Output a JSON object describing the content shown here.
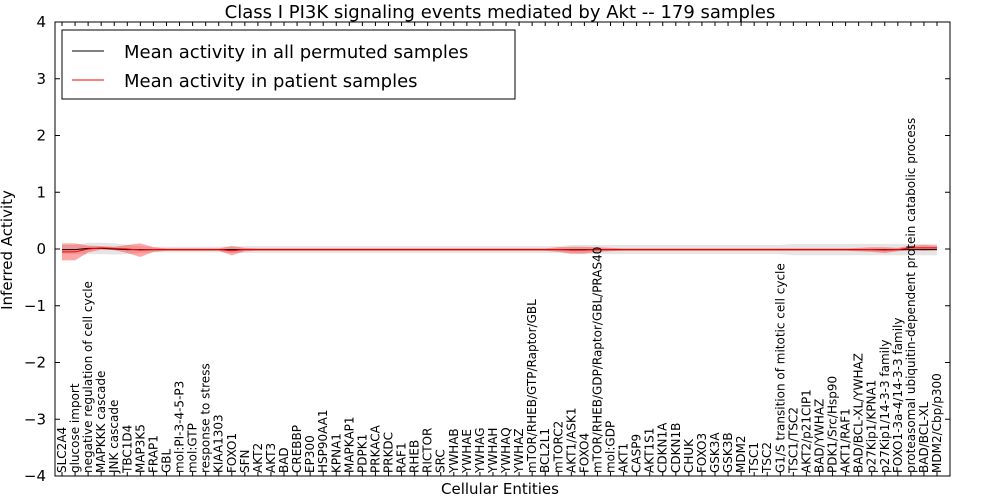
{
  "chart_data": {
    "type": "line",
    "title": "Class I PI3K signaling events mediated by Akt -- 179 samples",
    "xlabel": "Cellular Entities",
    "ylabel": "Inferred Activity",
    "ylim": [
      -4,
      4
    ],
    "yticks": [
      4,
      3,
      2,
      1,
      0,
      -1,
      -2,
      -3,
      -4
    ],
    "ytick_labels": [
      "4",
      "3",
      "2",
      "1",
      "0",
      "−1",
      "−2",
      "−3",
      "−4"
    ],
    "legend_location": "top-left",
    "categories": [
      "SLC2A4",
      "glucose import",
      "negative regulation of cell cycle",
      "MAPKKK cascade",
      "JNK cascade",
      "TBC1D4",
      "MAP3K5",
      "FRAP1",
      "GBL",
      "mol:PI-3-4-5-P3",
      "mol:GTP",
      "response to stress",
      "KIAA1303",
      "FOXO1",
      "SFN",
      "AKT2",
      "AKT3",
      "BAD",
      "CREBBP",
      "EP300",
      "HSP90AA1",
      "KPNA1",
      "MAPKAP1",
      "PDPK1",
      "PRKACA",
      "PRKDC",
      "RAF1",
      "RHEB",
      "RICTOR",
      "SRC",
      "YWHAB",
      "YWHAE",
      "YWHAG",
      "YWHAH",
      "YWHAQ",
      "YWHAZ",
      "mTOR/RHEB/GTP/Raptor/GBL",
      "BCL2L1",
      "mTORC2",
      "AKT1/ASK1",
      "FOXO4",
      "mTOR/RHEB/GDP/Raptor/GBL/PRAS40",
      "mol:GDP",
      "AKT1",
      "CASP9",
      "AKT1S1",
      "CDKN1A",
      "CDKN1B",
      "CHUK",
      "FOXO3",
      "GSK3A",
      "GSK3B",
      "MDM2",
      "TSC1",
      "TSC2",
      "G1/S transition of mitotic cell cycle",
      "TSC1/TSC2",
      "AKT2/p21CIP1",
      "BAD/YWHAZ",
      "PDK1/Src/Hsp90",
      "AKT1/RAF1",
      "BAD/BCL-XL/YWHAZ",
      "p27Kip1/KPNA1",
      "p27Kip1/14-3-3 family",
      "FOXO1-3a-4/14-3-3 family",
      "proteasomal ubiquitin-dependent protein catabolic process",
      "BAD/BCL-XL",
      "MDM2/Cbp/p300"
    ],
    "series": [
      {
        "name": "Mean activity in all permuted samples",
        "color": "#000000",
        "values": [
          -0.01,
          -0.01,
          0.01,
          0.01,
          0.0,
          -0.01,
          -0.01,
          -0.01,
          -0.01,
          -0.01,
          -0.01,
          -0.01,
          -0.01,
          -0.01,
          -0.01,
          -0.01,
          -0.01,
          -0.01,
          -0.01,
          -0.01,
          -0.01,
          -0.01,
          -0.01,
          -0.01,
          -0.01,
          -0.01,
          -0.01,
          -0.01,
          -0.01,
          -0.01,
          -0.01,
          -0.01,
          -0.01,
          -0.01,
          -0.01,
          -0.01,
          -0.01,
          -0.01,
          -0.01,
          -0.01,
          -0.01,
          -0.01,
          -0.01,
          -0.01,
          -0.01,
          -0.01,
          -0.01,
          -0.01,
          -0.01,
          -0.01,
          -0.01,
          -0.01,
          -0.01,
          -0.01,
          -0.01,
          -0.01,
          -0.01,
          -0.01,
          -0.01,
          -0.01,
          -0.01,
          -0.01,
          -0.01,
          -0.01,
          -0.01,
          -0.01,
          -0.01,
          -0.01
        ],
        "band": [
          0.08,
          0.08,
          0.1,
          0.1,
          0.1,
          0.08,
          0.06,
          0.05,
          0.05,
          0.05,
          0.05,
          0.05,
          0.05,
          0.06,
          0.06,
          0.06,
          0.06,
          0.06,
          0.06,
          0.06,
          0.06,
          0.06,
          0.06,
          0.06,
          0.06,
          0.06,
          0.06,
          0.06,
          0.06,
          0.06,
          0.06,
          0.06,
          0.06,
          0.06,
          0.06,
          0.06,
          0.06,
          0.06,
          0.06,
          0.08,
          0.08,
          0.08,
          0.08,
          0.08,
          0.08,
          0.08,
          0.08,
          0.08,
          0.08,
          0.08,
          0.08,
          0.08,
          0.08,
          0.08,
          0.08,
          0.08,
          0.1,
          0.1,
          0.1,
          0.1,
          0.1,
          0.1,
          0.1,
          0.1,
          0.1,
          0.1,
          0.1,
          0.1
        ]
      },
      {
        "name": "Mean activity in patient samples",
        "color": "#ff0000",
        "values": [
          -0.05,
          -0.05,
          0.0,
          0.02,
          0.01,
          0.0,
          -0.02,
          -0.01,
          -0.01,
          -0.01,
          -0.01,
          -0.01,
          -0.01,
          -0.03,
          -0.01,
          -0.01,
          -0.01,
          -0.01,
          -0.01,
          -0.01,
          -0.01,
          -0.01,
          -0.01,
          -0.01,
          -0.01,
          -0.01,
          -0.01,
          -0.01,
          -0.01,
          -0.01,
          -0.01,
          -0.01,
          -0.01,
          -0.01,
          -0.01,
          -0.01,
          -0.01,
          -0.01,
          -0.01,
          -0.02,
          -0.02,
          -0.01,
          -0.01,
          -0.01,
          -0.01,
          -0.01,
          -0.01,
          -0.01,
          -0.01,
          -0.01,
          -0.01,
          -0.01,
          -0.01,
          -0.01,
          -0.01,
          -0.01,
          -0.01,
          -0.01,
          -0.01,
          -0.01,
          -0.01,
          -0.01,
          -0.01,
          -0.02,
          -0.01,
          0.02,
          0.02,
          0.02
        ],
        "band": [
          0.15,
          0.15,
          0.06,
          0.03,
          0.03,
          0.07,
          0.12,
          0.04,
          0.02,
          0.02,
          0.02,
          0.02,
          0.02,
          0.08,
          0.03,
          0.02,
          0.02,
          0.02,
          0.02,
          0.02,
          0.02,
          0.02,
          0.02,
          0.02,
          0.02,
          0.02,
          0.02,
          0.02,
          0.02,
          0.02,
          0.02,
          0.02,
          0.02,
          0.02,
          0.02,
          0.02,
          0.02,
          0.02,
          0.04,
          0.06,
          0.06,
          0.04,
          0.03,
          0.02,
          0.02,
          0.02,
          0.02,
          0.02,
          0.02,
          0.02,
          0.02,
          0.02,
          0.02,
          0.02,
          0.02,
          0.02,
          0.02,
          0.02,
          0.02,
          0.02,
          0.02,
          0.03,
          0.04,
          0.05,
          0.03,
          0.04,
          0.05,
          0.04
        ]
      }
    ]
  }
}
